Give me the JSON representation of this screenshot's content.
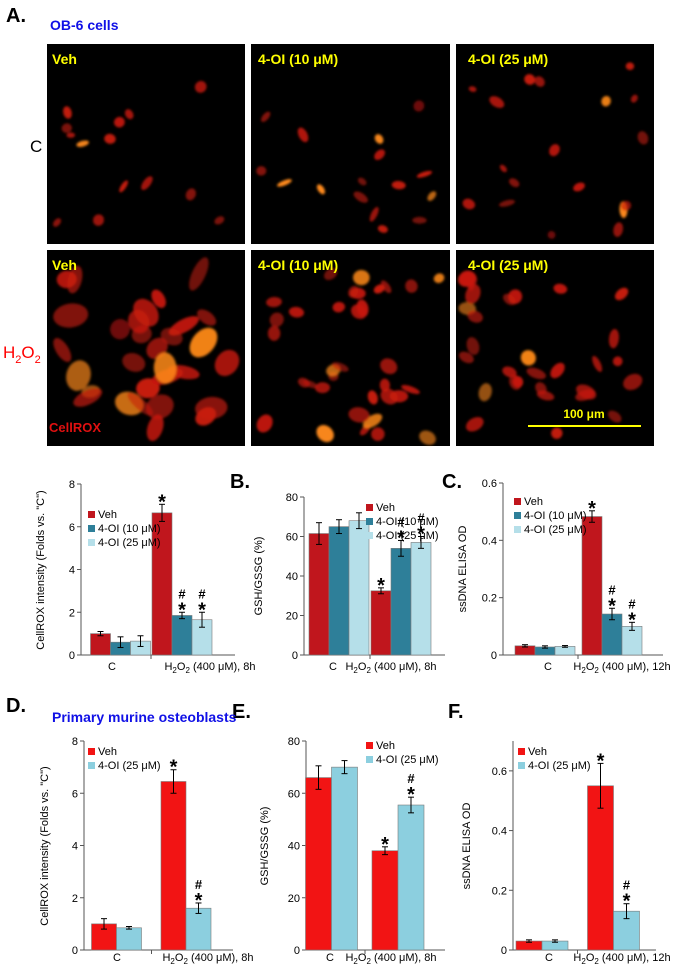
{
  "panel_letters": [
    "A.",
    "B.",
    "C.",
    "D.",
    "E.",
    "F."
  ],
  "micrograph": {
    "title": "OB-6 cells",
    "row_labels": [
      "C",
      "H2O2"
    ],
    "tile_labels": [
      "Veh",
      "4-OI (10 μM)",
      "4-OI (25 μM)"
    ],
    "stain_label": "CellROX",
    "scale_bar_label": "100 μm"
  },
  "section_title_d": "Primary murine osteoblasts",
  "colors": {
    "dark_red": "#c0161d",
    "teal": "#2e7f99",
    "light_blue": "#b5dfe9",
    "red": "#f21414",
    "sky_blue": "#8ccfdf",
    "micro_title": "#1010e6",
    "tile_label": "#ffff00",
    "h2o2_label": "#ff0000",
    "scale_bar": "#ffff00"
  },
  "chart_data": [
    {
      "id": "A-quant",
      "type": "bar",
      "ylabel": "CellROX intensity (Folds vs. \"C\")",
      "ylim": [
        0,
        8
      ],
      "yticks": [
        0,
        2,
        4,
        6,
        8
      ],
      "categories": [
        "C",
        "H2O2 (400 μM), 8h"
      ],
      "series": [
        {
          "name": "Veh",
          "values": [
            1.0,
            6.65
          ],
          "errors": [
            0.1,
            0.4
          ]
        },
        {
          "name": "4-OI (10 μM)",
          "values": [
            0.6,
            1.85
          ],
          "errors": [
            0.25,
            0.15
          ]
        },
        {
          "name": "4-OI (25 μM)",
          "values": [
            0.65,
            1.65
          ],
          "errors": [
            0.25,
            0.35
          ]
        }
      ],
      "annotations": [
        [
          "",
          "*"
        ],
        [
          "",
          "#*"
        ],
        [
          "",
          "#*"
        ]
      ]
    },
    {
      "id": "B",
      "type": "bar",
      "ylabel": "GSH/GSSG (%)",
      "ylim": [
        0,
        80
      ],
      "yticks": [
        0,
        20,
        40,
        60,
        80
      ],
      "categories": [
        "C",
        "H2O2 (400 μM), 8h"
      ],
      "series": [
        {
          "name": "Veh",
          "values": [
            61.5,
            32.5
          ],
          "errors": [
            5.5,
            1.5
          ]
        },
        {
          "name": "4-OI (10 μM)",
          "values": [
            65.0,
            54.0
          ],
          "errors": [
            3.5,
            4.0
          ]
        },
        {
          "name": "4-OI (25 μM)",
          "values": [
            68.0,
            57.0
          ],
          "errors": [
            4.0,
            3.0
          ]
        }
      ],
      "annotations": [
        [
          "",
          "*"
        ],
        [
          "",
          "#*"
        ],
        [
          "",
          "#*"
        ]
      ]
    },
    {
      "id": "C",
      "type": "bar",
      "ylabel": "ssDNA ELISA OD",
      "ylim": [
        0,
        0.6
      ],
      "yticks": [
        "0",
        "0.2",
        "0.4",
        "0.6"
      ],
      "categories": [
        "C",
        "H2O2 (400 μM), 12h"
      ],
      "series": [
        {
          "name": "Veh",
          "values": [
            0.032,
            0.483
          ],
          "errors": [
            0.004,
            0.02
          ]
        },
        {
          "name": "4-OI (10 μM)",
          "values": [
            0.028,
            0.143
          ],
          "errors": [
            0.004,
            0.02
          ]
        },
        {
          "name": "4-OI (25 μM)",
          "values": [
            0.03,
            0.1
          ],
          "errors": [
            0.003,
            0.014
          ]
        }
      ],
      "annotations": [
        [
          "",
          "*"
        ],
        [
          "",
          "#*"
        ],
        [
          "",
          "#*"
        ]
      ]
    },
    {
      "id": "D",
      "type": "bar",
      "ylabel": "CellROX intensity (Folds vs. \"C\")",
      "ylim": [
        0,
        8
      ],
      "yticks": [
        0,
        2,
        4,
        6,
        8
      ],
      "categories": [
        "C",
        "H2O2 (400 μM), 8h"
      ],
      "series": [
        {
          "name": "Veh",
          "values": [
            1.0,
            6.45
          ],
          "errors": [
            0.2,
            0.45
          ]
        },
        {
          "name": "4-OI (25 μM)",
          "values": [
            0.85,
            1.6
          ],
          "errors": [
            0.05,
            0.2
          ]
        }
      ],
      "annotations": [
        [
          "",
          "*"
        ],
        [
          "",
          "#*"
        ]
      ]
    },
    {
      "id": "E",
      "type": "bar",
      "ylabel": "GSH/GSSG (%)",
      "ylim": [
        0,
        80
      ],
      "yticks": [
        0,
        20,
        40,
        60,
        80
      ],
      "categories": [
        "C",
        "H2O2 (400 μM), 8h"
      ],
      "series": [
        {
          "name": "Veh",
          "values": [
            66.0,
            38.0
          ],
          "errors": [
            4.5,
            1.5
          ]
        },
        {
          "name": "4-OI (25 μM)",
          "values": [
            70.0,
            55.5
          ],
          "errors": [
            2.5,
            3.0
          ]
        }
      ],
      "annotations": [
        [
          "",
          "*"
        ],
        [
          "",
          "#*"
        ]
      ]
    },
    {
      "id": "F",
      "type": "bar",
      "ylabel": "ssDNA ELISA OD",
      "ylim": [
        0,
        0.7
      ],
      "yticks": [
        "0",
        "0.2",
        "0.4",
        "0.6"
      ],
      "categories": [
        "C",
        "H2O2 (400 μM), 12h"
      ],
      "series": [
        {
          "name": "Veh",
          "values": [
            0.03,
            0.55
          ],
          "errors": [
            0.004,
            0.075
          ]
        },
        {
          "name": "4-OI (25 μM)",
          "values": [
            0.03,
            0.13
          ],
          "errors": [
            0.004,
            0.025
          ]
        }
      ],
      "annotations": [
        [
          "",
          "*"
        ],
        [
          "",
          "#*"
        ]
      ]
    }
  ]
}
